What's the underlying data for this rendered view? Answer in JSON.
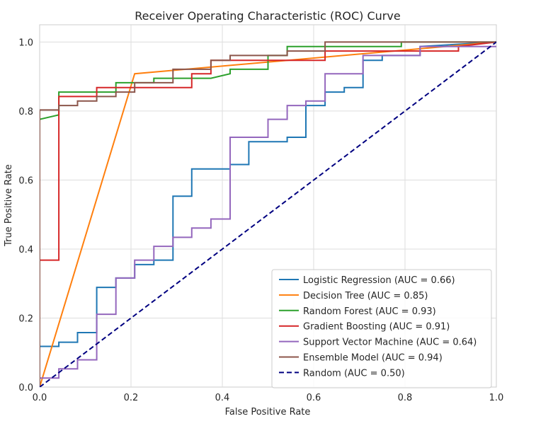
{
  "chart_data": {
    "type": "line",
    "title": "Receiver Operating Characteristic (ROC) Curve",
    "xlabel": "False Positive Rate",
    "ylabel": "True Positive Rate",
    "xlim": [
      0.0,
      1.0
    ],
    "ylim": [
      0.0,
      1.05
    ],
    "xticks": [
      "0.0",
      "0.2",
      "0.4",
      "0.6",
      "0.8",
      "1.0"
    ],
    "yticks": [
      "0.0",
      "0.2",
      "0.4",
      "0.6",
      "0.8",
      "1.0"
    ],
    "grid": true,
    "legend_position": "lower-right",
    "series": [
      {
        "name": "Logistic Regression (AUC = 0.66)",
        "color": "#1f77b4",
        "style": "solid",
        "x": [
          0,
          0,
          0.042,
          0.042,
          0.083,
          0.083,
          0.125,
          0.125,
          0.167,
          0.167,
          0.208,
          0.208,
          0.25,
          0.25,
          0.292,
          0.292,
          0.333,
          0.333,
          0.417,
          0.417,
          0.458,
          0.458,
          0.542,
          0.542,
          0.583,
          0.583,
          0.625,
          0.625,
          0.667,
          0.667,
          0.708,
          0.708,
          0.75,
          0.75,
          0.833,
          0.833,
          1.0
        ],
        "y": [
          0,
          0.118,
          0.118,
          0.13,
          0.13,
          0.158,
          0.158,
          0.289,
          0.289,
          0.316,
          0.316,
          0.355,
          0.355,
          0.368,
          0.368,
          0.553,
          0.553,
          0.632,
          0.632,
          0.645,
          0.645,
          0.711,
          0.711,
          0.724,
          0.724,
          0.816,
          0.816,
          0.855,
          0.855,
          0.868,
          0.868,
          0.947,
          0.947,
          0.961,
          0.961,
          0.987,
          1.0
        ]
      },
      {
        "name": "Decision Tree (AUC = 0.85)",
        "color": "#ff7f0e",
        "style": "solid",
        "x": [
          0,
          0.208,
          1.0
        ],
        "y": [
          0,
          0.908,
          1.0
        ]
      },
      {
        "name": "Random Forest (AUC = 0.93)",
        "color": "#2ca02c",
        "style": "solid",
        "x": [
          0,
          0,
          0.042,
          0.042,
          0.167,
          0.167,
          0.25,
          0.25,
          0.375,
          0.417,
          0.417,
          0.5,
          0.5,
          0.542,
          0.542,
          0.792,
          0.792,
          1.0
        ],
        "y": [
          0,
          0.776,
          0.789,
          0.855,
          0.855,
          0.882,
          0.882,
          0.895,
          0.895,
          0.908,
          0.921,
          0.921,
          0.961,
          0.961,
          0.987,
          0.987,
          1.0,
          1.0
        ]
      },
      {
        "name": "Gradient Boosting (AUC = 0.91)",
        "color": "#d62728",
        "style": "solid",
        "x": [
          0,
          0,
          0.042,
          0.042,
          0.125,
          0.125,
          0.333,
          0.333,
          0.375,
          0.375,
          0.625,
          0.625,
          0.917,
          0.917,
          1.0
        ],
        "y": [
          0,
          0.368,
          0.368,
          0.842,
          0.842,
          0.868,
          0.868,
          0.908,
          0.908,
          0.947,
          0.947,
          0.974,
          0.974,
          0.987,
          1.0
        ]
      },
      {
        "name": "Support Vector Machine (AUC = 0.64)",
        "color": "#9467bd",
        "style": "solid",
        "x": [
          0,
          0,
          0.042,
          0.042,
          0.083,
          0.083,
          0.125,
          0.125,
          0.167,
          0.167,
          0.208,
          0.208,
          0.25,
          0.25,
          0.292,
          0.292,
          0.333,
          0.333,
          0.375,
          0.375,
          0.417,
          0.417,
          0.5,
          0.5,
          0.542,
          0.542,
          0.583,
          0.583,
          0.625,
          0.625,
          0.708,
          0.708,
          0.833,
          0.833,
          1.0
        ],
        "y": [
          0,
          0.026,
          0.026,
          0.053,
          0.053,
          0.079,
          0.079,
          0.211,
          0.211,
          0.316,
          0.316,
          0.368,
          0.368,
          0.408,
          0.408,
          0.434,
          0.434,
          0.461,
          0.461,
          0.487,
          0.487,
          0.724,
          0.724,
          0.776,
          0.776,
          0.816,
          0.816,
          0.829,
          0.829,
          0.908,
          0.908,
          0.961,
          0.961,
          0.987,
          0.987
        ]
      },
      {
        "name": "Ensemble Model (AUC = 0.94)",
        "color": "#8c564b",
        "style": "solid",
        "x": [
          0,
          0,
          0.042,
          0.042,
          0.083,
          0.083,
          0.125,
          0.125,
          0.167,
          0.167,
          0.208,
          0.208,
          0.292,
          0.292,
          0.375,
          0.375,
          0.417,
          0.417,
          0.542,
          0.542,
          0.625,
          0.625,
          1.0
        ],
        "y": [
          0,
          0.803,
          0.803,
          0.816,
          0.816,
          0.829,
          0.829,
          0.842,
          0.842,
          0.855,
          0.855,
          0.882,
          0.882,
          0.921,
          0.921,
          0.947,
          0.947,
          0.961,
          0.961,
          0.974,
          0.974,
          1.0,
          1.0
        ]
      },
      {
        "name": "Random (AUC = 0.50)",
        "color": "#000080",
        "style": "dashed",
        "x": [
          0,
          1.0
        ],
        "y": [
          0,
          1.0
        ]
      }
    ]
  }
}
